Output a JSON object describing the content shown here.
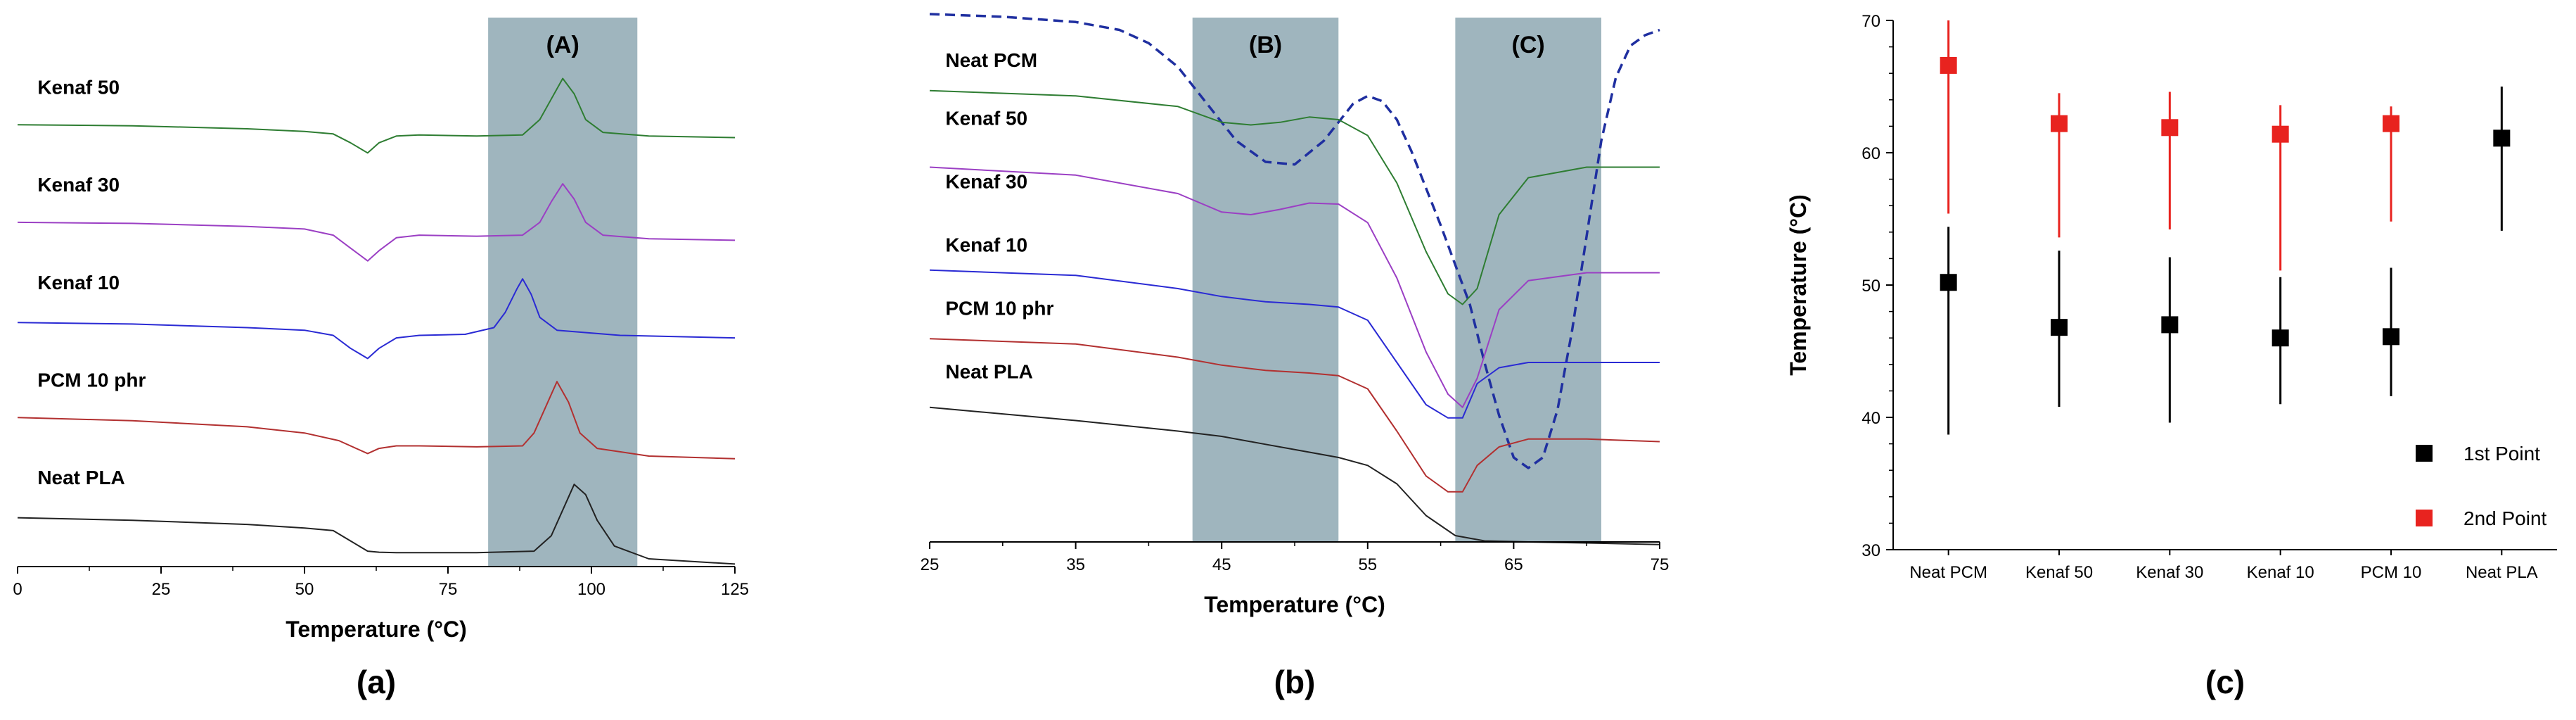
{
  "colors": {
    "shade": "#9fb5be",
    "axis": "#000000",
    "dashed": "#1f2fa0",
    "first_point": "#000000",
    "second_point": "#e8231f",
    "series": {
      "Kenaf 50": "#2e7d32",
      "Kenaf 30": "#9b3fc4",
      "Kenaf 10": "#2a2ad4",
      "PCM 10 phr": "#b23030",
      "Neat PLA": "#222222",
      "Neat PCM": "#1f2fa0"
    }
  },
  "chart_data": [
    {
      "panel_label": "(a)",
      "type": "line",
      "title": "",
      "xlabel": "Temperature (°C)",
      "ylabel": "",
      "xlim": [
        0,
        125
      ],
      "xticks": [
        0,
        25,
        50,
        75,
        100,
        125
      ],
      "ylim": [
        0,
        10
      ],
      "shaded_regions": [
        {
          "label": "(A)",
          "x": [
            82,
            108
          ]
        }
      ],
      "series": [
        {
          "name": "Kenaf 50",
          "label_at": [
            2,
            9.2
          ],
          "x": [
            0,
            20,
            40,
            50,
            55,
            58,
            61,
            63,
            66,
            70,
            80,
            88,
            91,
            93,
            95,
            97,
            99,
            102,
            110,
            125
          ],
          "y": [
            8.6,
            8.58,
            8.52,
            8.47,
            8.42,
            8.25,
            8.05,
            8.25,
            8.38,
            8.4,
            8.38,
            8.4,
            8.7,
            9.1,
            9.5,
            9.2,
            8.7,
            8.45,
            8.38,
            8.35
          ]
        },
        {
          "name": "Kenaf 30",
          "label_at": [
            2,
            7.3
          ],
          "x": [
            0,
            20,
            40,
            50,
            55,
            58,
            61,
            63,
            66,
            70,
            80,
            88,
            91,
            93,
            95,
            97,
            99,
            102,
            110,
            125
          ],
          "y": [
            6.7,
            6.68,
            6.62,
            6.57,
            6.45,
            6.2,
            5.95,
            6.15,
            6.4,
            6.45,
            6.43,
            6.45,
            6.7,
            7.1,
            7.45,
            7.15,
            6.7,
            6.45,
            6.38,
            6.35
          ]
        },
        {
          "name": "Kenaf 10",
          "label_at": [
            2,
            5.4
          ],
          "x": [
            0,
            20,
            40,
            50,
            55,
            58,
            61,
            63,
            66,
            70,
            78,
            83,
            85,
            87,
            88,
            89.5,
            91,
            94,
            105,
            125
          ],
          "y": [
            4.75,
            4.72,
            4.65,
            4.6,
            4.5,
            4.25,
            4.05,
            4.25,
            4.45,
            4.5,
            4.52,
            4.65,
            4.95,
            5.4,
            5.6,
            5.3,
            4.85,
            4.6,
            4.5,
            4.45
          ]
        },
        {
          "name": "PCM 10 phr",
          "label_at": [
            2,
            3.5
          ],
          "x": [
            0,
            20,
            40,
            50,
            56,
            59,
            61,
            63,
            66,
            70,
            80,
            88,
            90,
            92,
            94,
            96,
            98,
            101,
            110,
            125
          ],
          "y": [
            2.9,
            2.84,
            2.72,
            2.6,
            2.45,
            2.3,
            2.2,
            2.3,
            2.35,
            2.35,
            2.33,
            2.35,
            2.6,
            3.1,
            3.6,
            3.2,
            2.6,
            2.3,
            2.15,
            2.1
          ]
        },
        {
          "name": "Neat PLA",
          "label_at": [
            2,
            1.6
          ],
          "x": [
            0,
            20,
            40,
            50,
            55,
            58,
            61,
            63,
            66,
            70,
            80,
            90,
            93,
            95,
            97,
            99,
            101,
            104,
            110,
            125
          ],
          "y": [
            0.95,
            0.9,
            0.82,
            0.75,
            0.7,
            0.5,
            0.3,
            0.28,
            0.27,
            0.27,
            0.27,
            0.3,
            0.6,
            1.1,
            1.6,
            1.4,
            0.9,
            0.4,
            0.15,
            0.05
          ]
        }
      ]
    },
    {
      "panel_label": "(b)",
      "type": "line",
      "title": "",
      "xlabel": "Temperature (°C)",
      "ylabel": "",
      "xlim": [
        25,
        75
      ],
      "xticks": [
        25,
        35,
        45,
        55,
        65,
        75
      ],
      "ylim": [
        0,
        10
      ],
      "shaded_regions": [
        {
          "label": "(B)",
          "x": [
            43,
            53
          ]
        },
        {
          "label": "(C)",
          "x": [
            61,
            71
          ]
        }
      ],
      "series": [
        {
          "name": "Neat PCM",
          "label_at": [
            25.5,
            9.0
          ],
          "dashed": true,
          "x": [
            25,
            30,
            35,
            38,
            40,
            42,
            44,
            46,
            48,
            50,
            52,
            54,
            55,
            56,
            57,
            58,
            60,
            62,
            63,
            64,
            65,
            66,
            67,
            68,
            69,
            70,
            71,
            72,
            73,
            74,
            75
          ],
          "y": [
            10.0,
            9.95,
            9.85,
            9.7,
            9.45,
            9.0,
            8.3,
            7.6,
            7.2,
            7.15,
            7.6,
            8.3,
            8.45,
            8.35,
            8.0,
            7.4,
            6.0,
            4.5,
            3.4,
            2.4,
            1.6,
            1.4,
            1.6,
            2.5,
            4.0,
            5.8,
            7.6,
            8.8,
            9.4,
            9.6,
            9.7
          ]
        },
        {
          "name": "Kenaf 50",
          "label_at": [
            25.5,
            7.9
          ],
          "x": [
            25,
            35,
            42,
            45,
            47,
            49,
            51,
            53,
            55,
            57,
            59,
            60.5,
            61.5,
            62.5,
            64,
            66,
            70,
            75
          ],
          "y": [
            8.55,
            8.45,
            8.25,
            7.95,
            7.9,
            7.95,
            8.05,
            8.0,
            7.7,
            6.8,
            5.5,
            4.7,
            4.5,
            4.8,
            6.2,
            6.9,
            7.1,
            7.1
          ]
        },
        {
          "name": "Kenaf 30",
          "label_at": [
            25.5,
            6.7
          ],
          "x": [
            25,
            35,
            42,
            45,
            47,
            49,
            51,
            53,
            55,
            57,
            59,
            60.5,
            61.5,
            62.5,
            64,
            66,
            70,
            75
          ],
          "y": [
            7.1,
            6.95,
            6.6,
            6.25,
            6.2,
            6.3,
            6.42,
            6.4,
            6.05,
            5.0,
            3.6,
            2.8,
            2.55,
            3.1,
            4.4,
            4.95,
            5.1,
            5.1
          ]
        },
        {
          "name": "Kenaf 10",
          "label_at": [
            25.5,
            5.5
          ],
          "x": [
            25,
            35,
            42,
            45,
            48,
            51,
            53,
            55,
            57,
            59,
            60.5,
            61.5,
            62.5,
            64,
            66,
            70,
            75
          ],
          "y": [
            5.15,
            5.05,
            4.8,
            4.65,
            4.55,
            4.5,
            4.45,
            4.2,
            3.4,
            2.6,
            2.35,
            2.35,
            3.0,
            3.3,
            3.4,
            3.4,
            3.4
          ]
        },
        {
          "name": "PCM 10 phr",
          "label_at": [
            25.5,
            4.3
          ],
          "x": [
            25,
            35,
            42,
            45,
            48,
            51,
            53,
            55,
            57,
            59,
            60.5,
            61.5,
            62.5,
            64,
            66,
            70,
            75
          ],
          "y": [
            3.85,
            3.75,
            3.5,
            3.35,
            3.25,
            3.2,
            3.15,
            2.9,
            2.1,
            1.25,
            0.95,
            0.95,
            1.45,
            1.8,
            1.95,
            1.95,
            1.9
          ]
        },
        {
          "name": "Neat PLA",
          "label_at": [
            25.5,
            3.1
          ],
          "x": [
            25,
            35,
            42,
            45,
            48,
            51,
            53,
            55,
            57,
            59,
            61,
            63,
            66,
            70,
            75
          ],
          "y": [
            2.55,
            2.3,
            2.1,
            2.0,
            1.85,
            1.7,
            1.6,
            1.45,
            1.1,
            0.5,
            0.12,
            0.02,
            0.0,
            -0.02,
            -0.05
          ]
        }
      ]
    },
    {
      "panel_label": "(c)",
      "type": "scatter",
      "title": "",
      "xlabel": "",
      "ylabel": "Temperature (°C)",
      "ylim": [
        30,
        70
      ],
      "yticks": [
        30,
        40,
        50,
        60,
        70
      ],
      "categories": [
        "Neat PCM",
        "Kenaf 50",
        "Kenaf 30",
        "Kenaf 10",
        "PCM 10",
        "Neat PLA"
      ],
      "legend_position": "bottom-right",
      "series": [
        {
          "name": "1st Point",
          "values": [
            50.2,
            46.8,
            47.0,
            46.0,
            46.1,
            61.1
          ],
          "err_low": [
            38.7,
            40.8,
            39.6,
            41.0,
            41.6,
            54.1
          ],
          "err_high": [
            54.4,
            52.6,
            52.1,
            50.6,
            51.3,
            65.0
          ]
        },
        {
          "name": "2nd Point",
          "values": [
            66.6,
            62.2,
            61.9,
            61.4,
            62.2,
            null
          ],
          "err_low": [
            55.4,
            53.6,
            54.2,
            51.1,
            54.8,
            null
          ],
          "err_high": [
            70.0,
            64.5,
            64.6,
            63.6,
            63.5,
            null
          ]
        }
      ]
    }
  ]
}
